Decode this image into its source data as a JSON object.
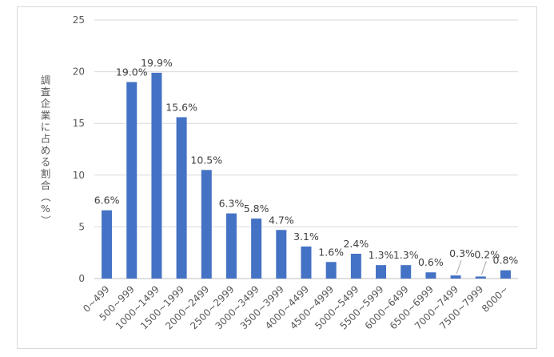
{
  "chart_data": {
    "type": "bar",
    "ylabel": "調査企業に占める割合（%）",
    "xlabel": "",
    "ylim": [
      0,
      25
    ],
    "yticks": [
      0,
      5,
      10,
      15,
      20,
      25
    ],
    "grid": true,
    "bar_color": "#4472C4",
    "categories": [
      "0~499",
      "500~999",
      "1000~1499",
      "1500~1999",
      "2000~2499",
      "2500~2999",
      "3000~3499",
      "3500~3999",
      "4000~4499",
      "4500~4999",
      "5000~5499",
      "5500~5999",
      "6000~6499",
      "6500~6999",
      "7000~7499",
      "7500~7999",
      "8000~"
    ],
    "values": [
      6.6,
      19.0,
      19.9,
      15.6,
      10.5,
      6.3,
      5.8,
      4.7,
      3.1,
      1.6,
      2.4,
      1.3,
      1.3,
      0.6,
      0.3,
      0.2,
      0.8
    ],
    "data_labels": [
      "6.6%",
      "19.0%",
      "19.9%",
      "15.6%",
      "10.5%",
      "6.3%",
      "5.8%",
      "4.7%",
      "3.1%",
      "1.6%",
      "2.4%",
      "1.3%",
      "1.3%",
      "0.6%",
      "0.3%",
      "0.2%",
      "0.8%"
    ]
  }
}
